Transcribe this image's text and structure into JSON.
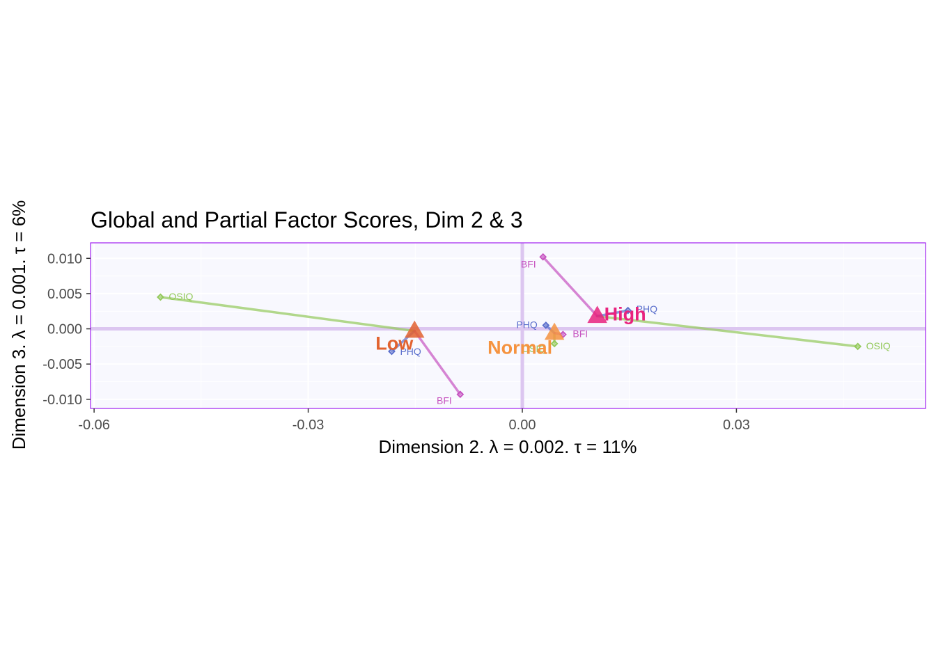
{
  "chart_data": {
    "type": "scatter",
    "title": "Global and Partial Factor Scores, Dim 2 & 3",
    "xlabel": "Dimension 2.   λ = 0.002.  τ = 11%",
    "ylabel": "Dimension 3.   λ = 0.001.  τ = 6%",
    "xlim": [
      -0.0605,
      0.0565
    ],
    "ylim": [
      -0.0113,
      0.0122
    ],
    "xticks": [
      -0.06,
      -0.03,
      0.0,
      0.03
    ],
    "xtick_labels": [
      "-0.06",
      "-0.03",
      "0.00",
      "0.03"
    ],
    "yticks": [
      -0.01,
      -0.005,
      0.0,
      0.005,
      0.01
    ],
    "ytick_labels": [
      "-0.010",
      "-0.005",
      "0.000",
      "0.005",
      "0.010"
    ],
    "grid": true,
    "reference_lines": {
      "x": 0,
      "y": 0
    },
    "colors": {
      "panel_bg": "#f8f8fe",
      "panel_border": "#a020f0",
      "grid": "#ffffff",
      "reference": "#dcc6f0",
      "OSIQ": "#93c95a",
      "PHQ": "#5b6fcc",
      "BFI": "#c653c0",
      "Low": "#e2622f",
      "Normal": "#f59340",
      "High": "#e8227e"
    },
    "groups": [
      {
        "name": "Low",
        "label": "Low",
        "x": -0.0151,
        "y": -0.0003,
        "partials": [
          {
            "table": "OSIQ",
            "x": -0.0507,
            "y": 0.0045,
            "label": "OSIQ"
          },
          {
            "table": "PHQ",
            "x": -0.0183,
            "y": -0.0032,
            "label": "PHQ"
          },
          {
            "table": "BFI",
            "x": -0.0087,
            "y": -0.0093,
            "label": "BFI"
          }
        ]
      },
      {
        "name": "Normal",
        "label": "Normal",
        "x": 0.0045,
        "y": -0.0006,
        "partials": [
          {
            "table": "OSIQ",
            "x": 0.0045,
            "y": -0.0021,
            "label": "OSIQ"
          },
          {
            "table": "PHQ",
            "x": 0.0033,
            "y": 0.0005,
            "label": "PHQ"
          },
          {
            "table": "BFI",
            "x": 0.0057,
            "y": -0.0008,
            "label": "BFI"
          }
        ]
      },
      {
        "name": "High",
        "label": "High",
        "x": 0.0105,
        "y": 0.0018,
        "partials": [
          {
            "table": "OSIQ",
            "x": 0.047,
            "y": -0.0025,
            "label": "OSIQ"
          },
          {
            "table": "PHQ",
            "x": 0.0148,
            "y": 0.0026,
            "label": "PHQ"
          },
          {
            "table": "BFI",
            "x": 0.0029,
            "y": 0.0102,
            "label": "BFI"
          }
        ]
      }
    ]
  }
}
